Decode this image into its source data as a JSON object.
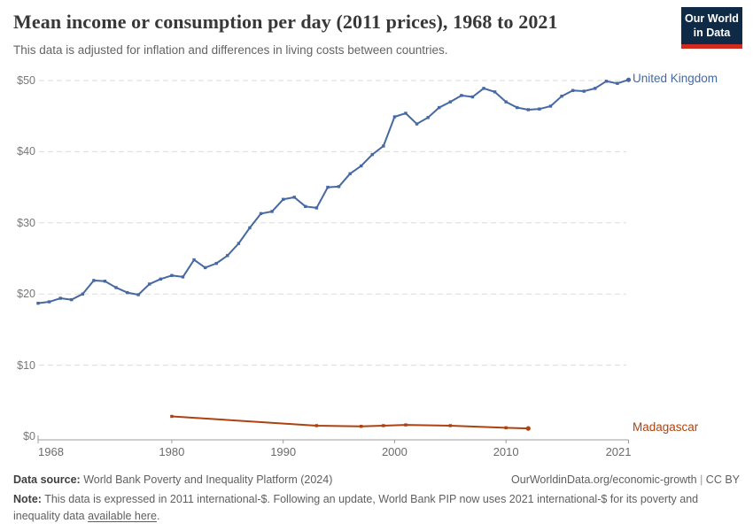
{
  "header": {
    "title": "Mean income or consumption per day (2011 prices), 1968 to 2021",
    "subtitle": "This data is adjusted for inflation and differences in living costs between countries.",
    "logo_line1": "Our World",
    "logo_line2": "in Data",
    "logo_bg_color": "#0e2a47",
    "logo_accent_color": "#d02b1e"
  },
  "chart_data": {
    "type": "line",
    "title": "Mean income or consumption per day (2011 prices), 1968 to 2021",
    "subtitle": "This data is adjusted for inflation and differences in living costs between countries.",
    "xlabel": "",
    "ylabel": "",
    "grid": true,
    "legend_position": "end-of-line labels (right)",
    "x_axis": {
      "min": 1968,
      "max": 2021,
      "ticks": [
        {
          "value": 1968,
          "label": "1968"
        },
        {
          "value": 1980,
          "label": "1980"
        },
        {
          "value": 1990,
          "label": "1990"
        },
        {
          "value": 2000,
          "label": "2000"
        },
        {
          "value": 2010,
          "label": "2010"
        },
        {
          "value": 2021,
          "label": "2021"
        }
      ]
    },
    "y_axis": {
      "min": 0,
      "max": 50,
      "ticks": [
        {
          "value": 0,
          "label": "$0"
        },
        {
          "value": 10,
          "label": "$10"
        },
        {
          "value": 20,
          "label": "$20"
        },
        {
          "value": 30,
          "label": "$30"
        },
        {
          "value": 40,
          "label": "$40"
        },
        {
          "value": 50,
          "label": "$50"
        }
      ]
    },
    "series": [
      {
        "name": "United Kingdom",
        "color": "#4668a3",
        "points": [
          [
            1968,
            18.7
          ],
          [
            1969,
            18.9
          ],
          [
            1970,
            19.4
          ],
          [
            1971,
            19.2
          ],
          [
            1972,
            20.0
          ],
          [
            1973,
            21.9
          ],
          [
            1974,
            21.8
          ],
          [
            1975,
            20.9
          ],
          [
            1976,
            20.2
          ],
          [
            1977,
            19.9
          ],
          [
            1978,
            21.4
          ],
          [
            1979,
            22.1
          ],
          [
            1980,
            22.6
          ],
          [
            1981,
            22.4
          ],
          [
            1982,
            24.8
          ],
          [
            1983,
            23.7
          ],
          [
            1984,
            24.3
          ],
          [
            1985,
            25.4
          ],
          [
            1986,
            27.1
          ],
          [
            1987,
            29.3
          ],
          [
            1988,
            31.3
          ],
          [
            1989,
            31.6
          ],
          [
            1990,
            33.3
          ],
          [
            1991,
            33.6
          ],
          [
            1992,
            32.3
          ],
          [
            1993,
            32.1
          ],
          [
            1994,
            35.0
          ],
          [
            1995,
            35.1
          ],
          [
            1996,
            36.9
          ],
          [
            1997,
            38.0
          ],
          [
            1998,
            39.6
          ],
          [
            1999,
            40.8
          ],
          [
            2000,
            44.9
          ],
          [
            2001,
            45.4
          ],
          [
            2002,
            43.9
          ],
          [
            2003,
            44.8
          ],
          [
            2004,
            46.2
          ],
          [
            2005,
            47.0
          ],
          [
            2006,
            47.9
          ],
          [
            2007,
            47.7
          ],
          [
            2008,
            48.9
          ],
          [
            2009,
            48.4
          ],
          [
            2010,
            47.0
          ],
          [
            2011,
            46.2
          ],
          [
            2012,
            45.9
          ],
          [
            2013,
            46.0
          ],
          [
            2014,
            46.4
          ],
          [
            2015,
            47.8
          ],
          [
            2016,
            48.6
          ],
          [
            2017,
            48.5
          ],
          [
            2018,
            48.9
          ],
          [
            2019,
            49.9
          ],
          [
            2020,
            49.6
          ],
          [
            2021,
            50.1
          ]
        ]
      },
      {
        "name": "Madagascar",
        "color": "#ad420f",
        "points": [
          [
            1980,
            2.8
          ],
          [
            1993,
            1.5
          ],
          [
            1997,
            1.4
          ],
          [
            1999,
            1.5
          ],
          [
            2001,
            1.6
          ],
          [
            2005,
            1.5
          ],
          [
            2010,
            1.2
          ],
          [
            2012,
            1.1
          ]
        ]
      }
    ]
  },
  "footer": {
    "data_source_label": "Data source:",
    "data_source": " World Bank Poverty and Inequality Platform (2024)",
    "attribution_url": "OurWorldinData.org/economic-growth",
    "attribution_separator": " | ",
    "attribution_license": "CC BY",
    "note_label": "Note:",
    "note_body": " This data is expressed in 2011 international-$. Following an update, World Bank PIP now uses 2021 international-$ for its poverty and inequality data ",
    "note_link": "available here",
    "note_after_link": "."
  }
}
